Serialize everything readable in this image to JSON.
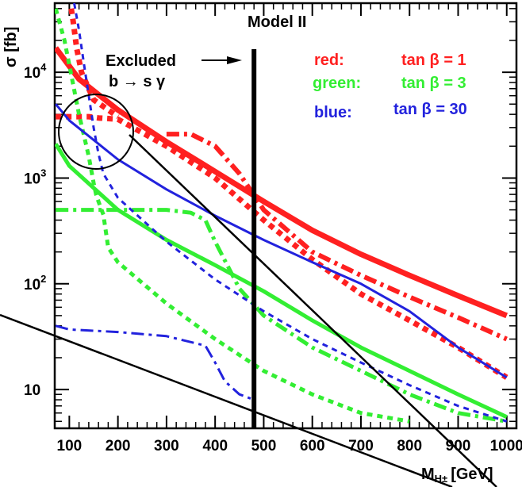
{
  "chart_data": {
    "type": "line",
    "title": "Model II",
    "xlabel": "M",
    "xlabel_sub": "H±",
    "xlabel_unit": "[GeV]",
    "ylabel": "σ [fb]",
    "x_scale": "linear",
    "y_scale": "log",
    "xlim": [
      70,
      1020
    ],
    "ylim": [
      4.3,
      45000
    ],
    "x_ticks": [
      100,
      200,
      300,
      400,
      500,
      600,
      700,
      800,
      900,
      1000
    ],
    "x_tick_labels": [
      "100",
      "200",
      "300",
      "400",
      "500",
      "600",
      "700",
      "800",
      "900",
      "1000"
    ],
    "y_ticks": [
      10,
      100,
      1000,
      10000
    ],
    "y_tick_labels": [
      {
        "base": "10",
        "exp": ""
      },
      {
        "base": "10",
        "exp": "2"
      },
      {
        "base": "10",
        "exp": "3"
      },
      {
        "base": "10",
        "exp": "4"
      }
    ],
    "grid": false,
    "legend_position": "top-right",
    "legend": [
      {
        "label": "red:",
        "value": "tan β = 1",
        "color": "#ff2020"
      },
      {
        "label": "green:",
        "value": "tan β = 3",
        "color": "#33ee33"
      },
      {
        "label": "blue:",
        "value": "tan β = 30",
        "color": "#2222dd"
      }
    ],
    "annotations": {
      "excluded_line1": "Excluded",
      "excluded_line2": "b → s γ",
      "exclusion_x": 480
    },
    "series": [
      {
        "color": "#ff2020",
        "style": "solid",
        "width": 7,
        "x": [
          72,
          120,
          200,
          300,
          400,
          500,
          600,
          700,
          800,
          900,
          1000
        ],
        "y": [
          17000,
          8600,
          4400,
          2200,
          1150,
          600,
          320,
          190,
          120,
          77,
          50
        ]
      },
      {
        "color": "#ff2020",
        "style": "dotted",
        "width": 7,
        "x": [
          72,
          120,
          140,
          160,
          200,
          300,
          400,
          500,
          600,
          700,
          800,
          900,
          1000
        ],
        "y": [
          3800,
          3800,
          3800,
          3700,
          3600,
          2000,
          1000,
          400,
          170,
          80,
          45,
          25,
          13
        ]
      },
      {
        "color": "#ff2020",
        "style": "dashdot",
        "width": 6,
        "x": [
          300,
          350,
          400,
          450,
          500,
          600,
          700,
          800,
          900,
          1000
        ],
        "y": [
          2600,
          2600,
          2000,
          1100,
          500,
          200,
          120,
          75,
          48,
          30
        ]
      },
      {
        "color": "#ff2020",
        "style": "dotted",
        "width": 7,
        "x": [
          104,
          108,
          115,
          125,
          150,
          200
        ],
        "y": [
          40000,
          30000,
          17000,
          10000,
          5500,
          3800
        ]
      },
      {
        "color": "#33ee33",
        "style": "solid",
        "width": 5,
        "x": [
          72,
          100,
          200,
          300,
          400,
          500,
          600,
          700,
          800,
          900,
          1000
        ],
        "y": [
          2100,
          1300,
          500,
          260,
          150,
          85,
          45,
          25,
          15,
          9,
          5.5
        ]
      },
      {
        "color": "#33ee33",
        "style": "dotted",
        "width": 5,
        "x": [
          72,
          90,
          120,
          140,
          150,
          155,
          160,
          170,
          180,
          200,
          300,
          400,
          500,
          600,
          700,
          800
        ],
        "y": [
          40000,
          20000,
          4000,
          1600,
          900,
          700,
          600,
          450,
          220,
          160,
          65,
          30,
          15,
          9,
          6,
          5
        ]
      },
      {
        "color": "#33ee33",
        "style": "dashdot",
        "width": 5,
        "x": [
          72,
          200,
          300,
          350,
          380,
          400,
          450,
          500,
          600,
          700,
          800,
          900,
          1000
        ],
        "y": [
          500,
          500,
          500,
          470,
          400,
          250,
          90,
          50,
          25,
          15,
          9,
          6,
          5
        ]
      },
      {
        "color": "#2222dd",
        "style": "solid",
        "width": 3,
        "x": [
          72,
          100,
          200,
          300,
          400,
          500,
          600,
          700,
          800,
          900,
          1000
        ],
        "y": [
          5000,
          3500,
          1500,
          780,
          440,
          260,
          160,
          100,
          55,
          25,
          13
        ]
      },
      {
        "color": "#2222dd",
        "style": "dashed",
        "width": 3,
        "x": [
          110,
          120,
          130,
          140,
          150,
          160,
          170,
          200,
          300,
          400,
          500,
          600,
          700,
          800,
          900,
          1000
        ],
        "y": [
          45000,
          25000,
          12000,
          6000,
          3000,
          1700,
          1100,
          650,
          250,
          110,
          55,
          30,
          18,
          11,
          7,
          5
        ]
      },
      {
        "color": "#2222dd",
        "style": "dashdot",
        "width": 3,
        "x": [
          72,
          100,
          200,
          300,
          380,
          400,
          420,
          450,
          480
        ],
        "y": [
          40,
          37,
          35,
          32,
          26,
          18,
          12,
          9,
          8
        ]
      }
    ],
    "black_lines": [
      {
        "x": [
          1,
          60
        ],
        "y": [
          4000,
          10000
        ]
      }
    ]
  }
}
